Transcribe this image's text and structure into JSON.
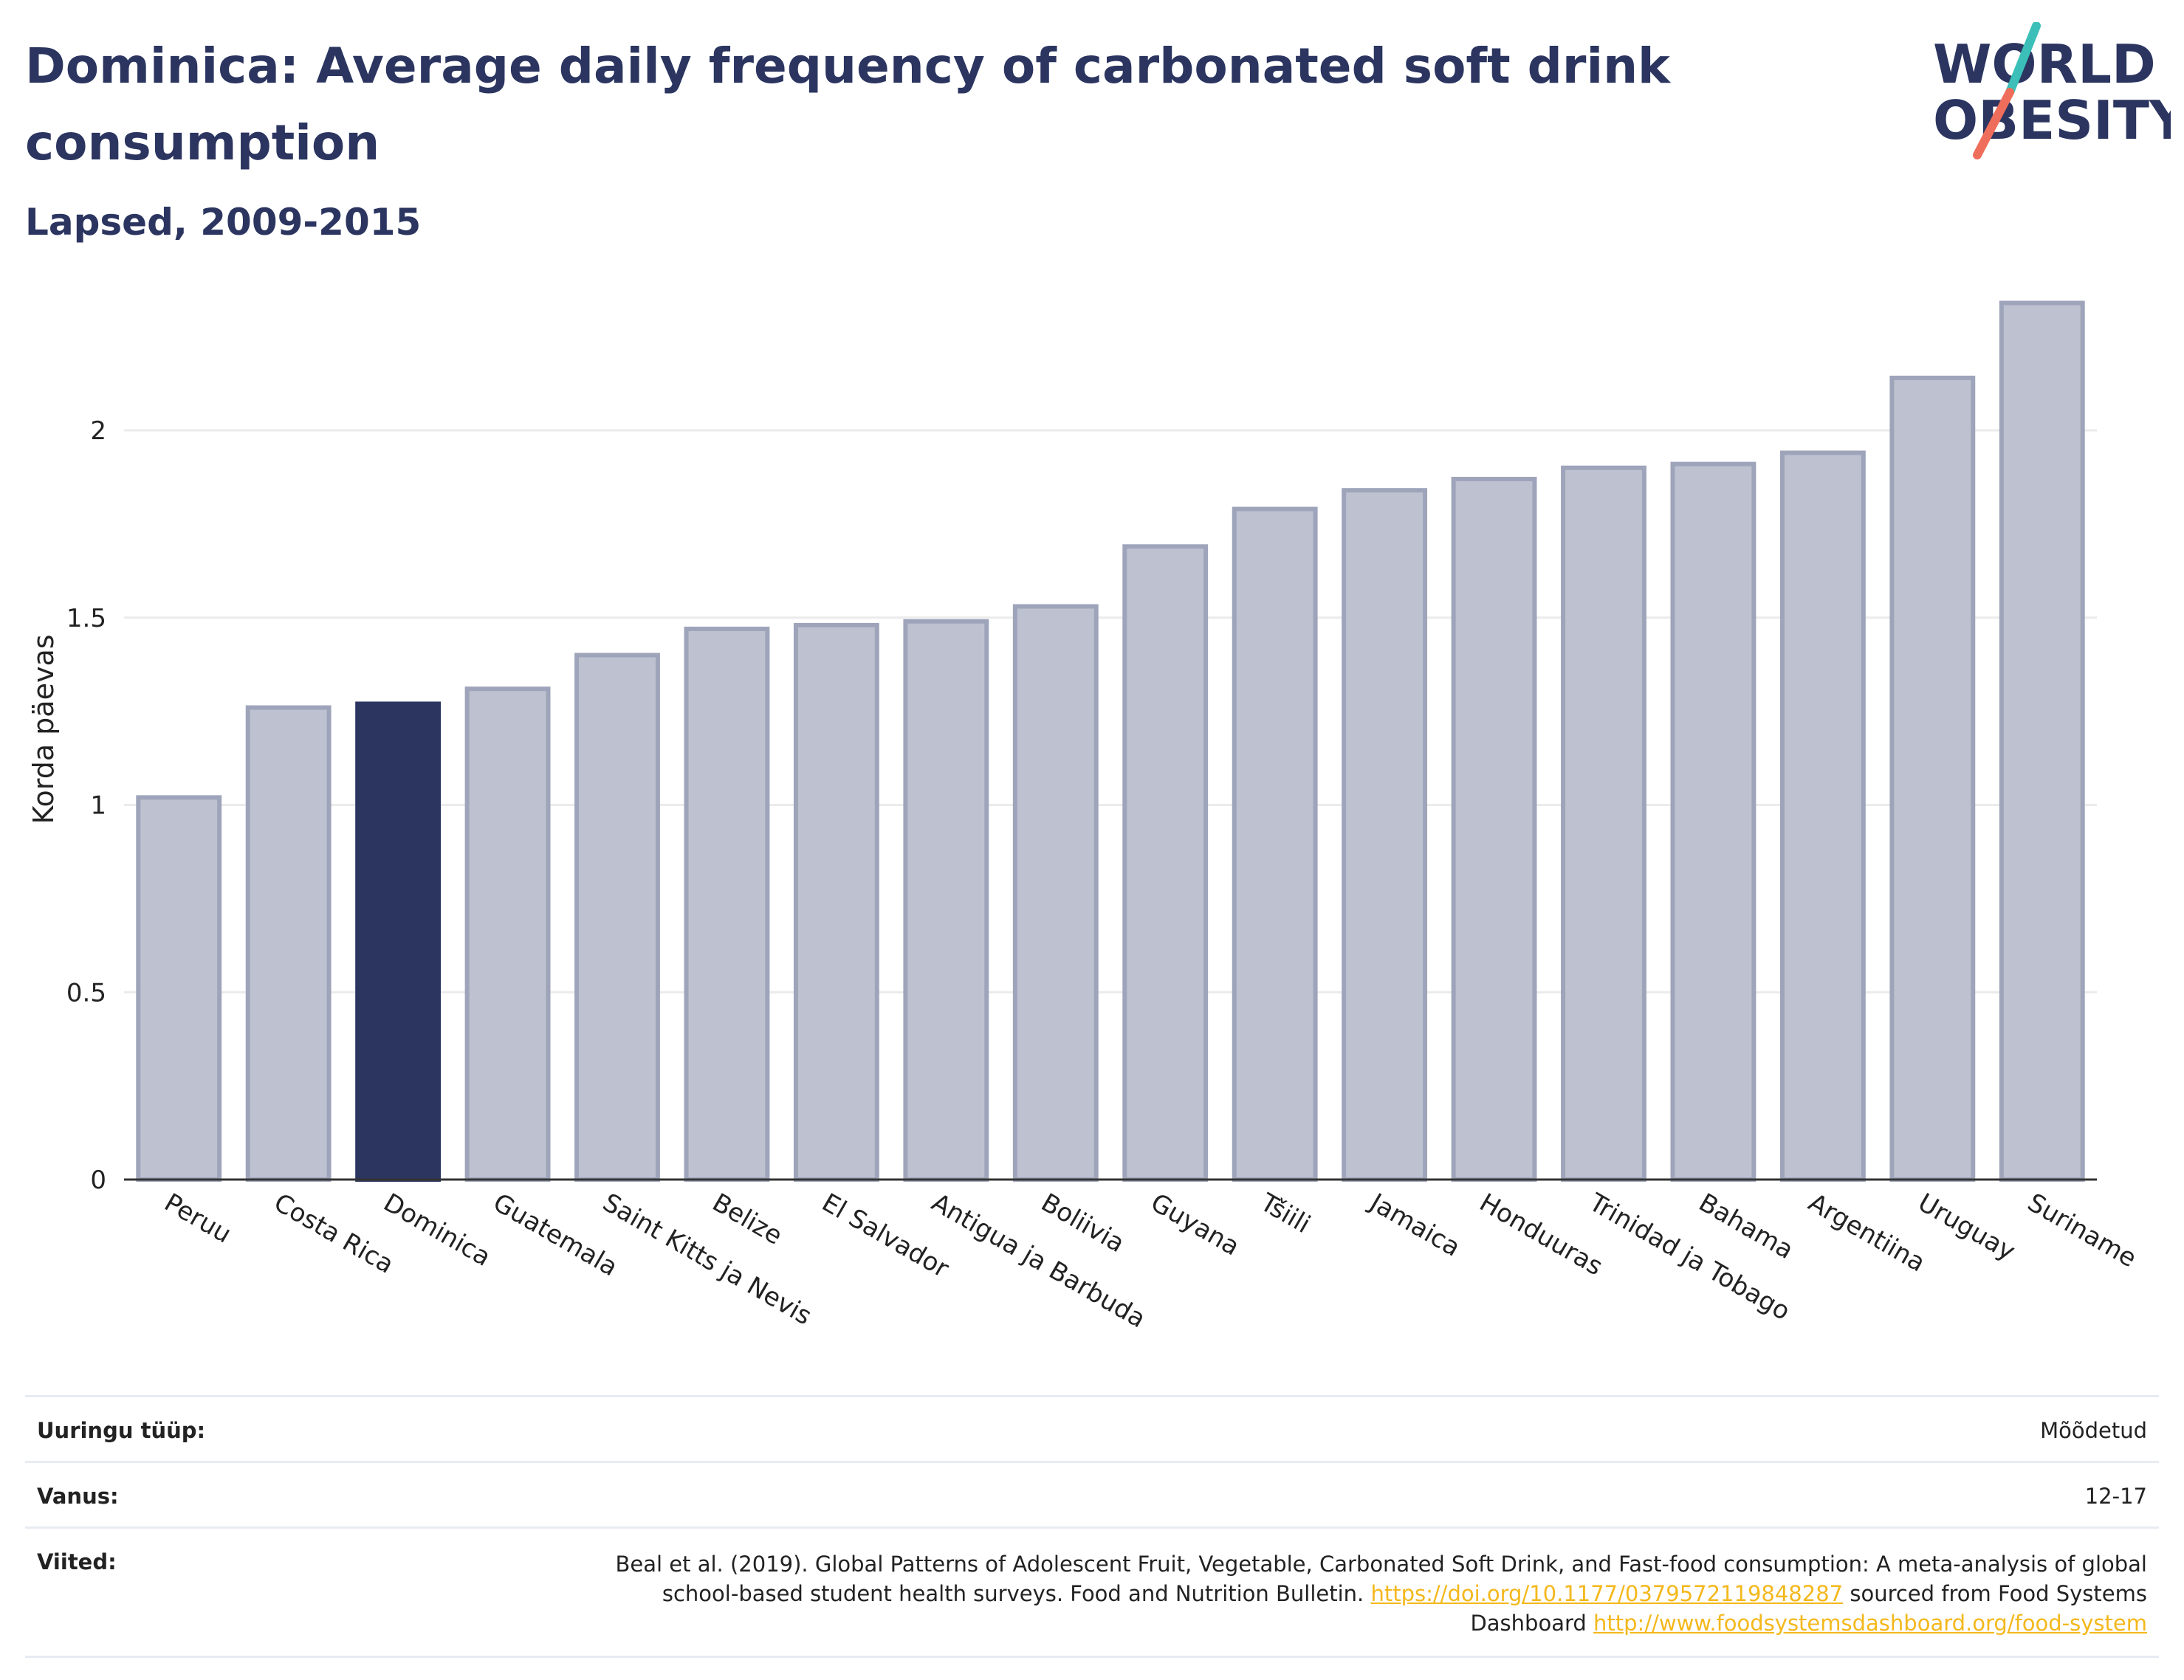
{
  "header": {
    "title": "Dominica: Average daily frequency of carbonated soft drink consumption",
    "subtitle": "Lapsed, 2009-2015"
  },
  "logo": {
    "line1": "WORLD",
    "line2": "OBESITY"
  },
  "colors": {
    "highlight": "#2b3560",
    "bar_fill": "#bec2d0",
    "bar_stroke": "#9ea4ba",
    "grid": "#ebebeb",
    "axis": "#333333",
    "logo_teal": "#3bbfb8",
    "logo_coral": "#ef6e5b"
  },
  "chart_data": {
    "type": "bar",
    "title": "Dominica: Average daily frequency of carbonated soft drink consumption",
    "subtitle": "Lapsed, 2009-2015",
    "xlabel": "",
    "ylabel": "Korda päevas",
    "ylim": [
      0,
      2.4
    ],
    "yticks": [
      0,
      0.5,
      1,
      1.5,
      2
    ],
    "ytick_labels": [
      "0",
      "0.5",
      "1",
      "1.5",
      "2"
    ],
    "grid": true,
    "highlight": "Dominica",
    "categories": [
      "Peruu",
      "Costa Rica",
      "Dominica",
      "Guatemala",
      "Saint Kitts ja Nevis",
      "Belize",
      "El Salvador",
      "Antigua ja Barbuda",
      "Boliivia",
      "Guyana",
      "Tšiili",
      "Jamaica",
      "Honduuras",
      "Trinidad ja Tobago",
      "Bahama",
      "Argentiina",
      "Uruguay",
      "Suriname"
    ],
    "values": [
      1.02,
      1.26,
      1.27,
      1.31,
      1.4,
      1.47,
      1.48,
      1.49,
      1.53,
      1.69,
      1.79,
      1.84,
      1.87,
      1.9,
      1.91,
      1.94,
      2.14,
      2.34
    ]
  },
  "info": {
    "survey_label": "Uuringu tüüp:",
    "survey_value": "Mõõdetud",
    "age_label": "Vanus:",
    "age_value": "12-17",
    "refs_label": "Viited:",
    "refs_text1": "Beal et al. (2019). Global Patterns of Adolescent Fruit, Vegetable, Carbonated Soft Drink, and Fast-food consumption: A meta-analysis of global school-based student health surveys. Food and Nutrition Bulletin.",
    "refs_link1": "https://doi.org/10.1177/0379572119848287",
    "refs_text2": "sourced from Food Systems Dashboard",
    "refs_link2": "http://www.foodsystemsdashboard.org/food-system"
  }
}
